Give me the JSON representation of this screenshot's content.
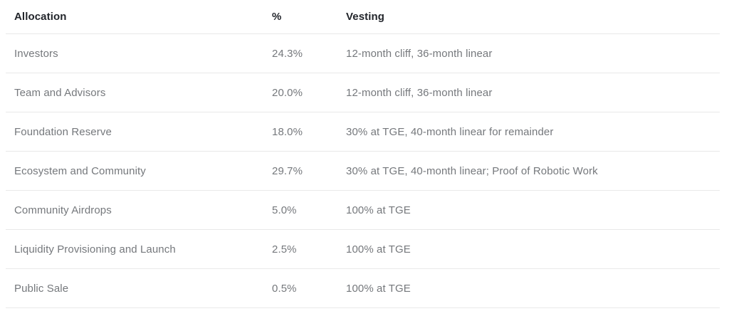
{
  "colors": {
    "background": "#ffffff",
    "header_text": "#22252b",
    "body_text": "#75787c",
    "divider": "#e9e9e9"
  },
  "chart_data": {
    "type": "table",
    "columns": [
      "Allocation",
      "%",
      "Vesting"
    ],
    "rows": [
      [
        "Investors",
        "24.3%",
        "12-month cliff, 36-month linear"
      ],
      [
        "Team and Advisors",
        "20.0%",
        "12-month cliff, 36-month linear"
      ],
      [
        "Foundation Reserve",
        "18.0%",
        "30% at TGE, 40-month linear for remainder"
      ],
      [
        "Ecosystem and Community",
        "29.7%",
        "30% at TGE, 40-month linear; Proof of Robotic Work"
      ],
      [
        "Community Airdrops",
        "5.0%",
        "100% at TGE"
      ],
      [
        "Liquidity Provisioning and Launch",
        "2.5%",
        "100% at TGE"
      ],
      [
        "Public Sale",
        "0.5%",
        "100% at TGE"
      ]
    ],
    "percent_values": [
      24.3,
      20.0,
      18.0,
      29.7,
      5.0,
      2.5,
      0.5
    ],
    "legend_position": "none",
    "grid": "horizontal-dividers-only"
  }
}
